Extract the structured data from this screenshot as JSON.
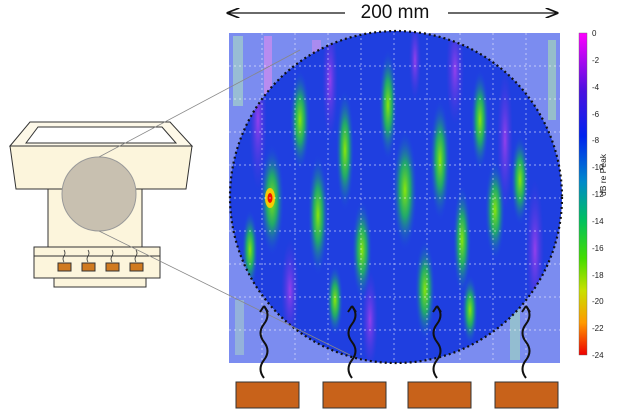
{
  "dimension_label": "200 mm",
  "colorbar": {
    "unit_label": "dB re Peak",
    "ticks": [
      "0",
      "-2",
      "-4",
      "-6",
      "-8",
      "-10",
      "-12",
      "-14",
      "-16",
      "-18",
      "-20",
      "-22",
      "-24"
    ]
  },
  "heaters": {
    "count": 4
  }
}
